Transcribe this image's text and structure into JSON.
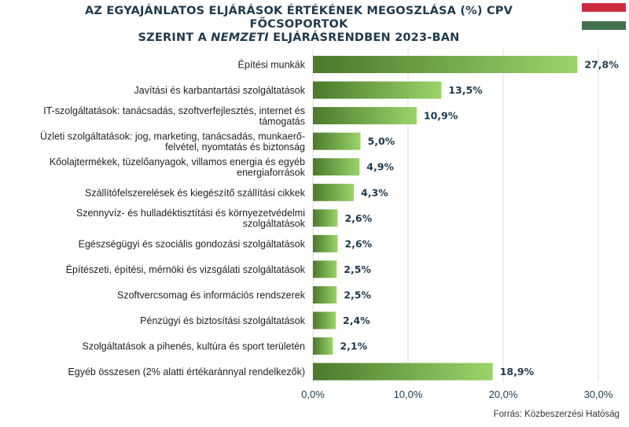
{
  "header": {
    "title_line1": "AZ EGYAJÁNLATOS ELJÁRÁSOK ÉRTÉKÉNEK MEGOSZLÁSA (%) CPV FŐCSOPORTOK",
    "title_line2_pre": "SZERINT A ",
    "title_line2_em": "NEMZETI",
    "title_line2_post": " ELJÁRÁSRENDBEN 2023-BAN"
  },
  "flag_colors": [
    "#cd2a3e",
    "#ffffff",
    "#436f4d"
  ],
  "source": "Forrás: Közbeszerzési Hatóság",
  "colors": {
    "bar_dark": "#4a7a2b",
    "bar_light": "#9bd46a",
    "grid": "#dcdcdc",
    "label": "#222222",
    "value": "#1f3a4d"
  },
  "chart_data": {
    "type": "bar",
    "orientation": "horizontal",
    "categories": [
      [
        "Építési munkák"
      ],
      [
        "Javítási és karbantartási szolgáltatások"
      ],
      [
        "IT-szolgáltatások: tanácsadás, szoftverfejlesztés, internet és",
        "támogatás"
      ],
      [
        "Üzleti szolgáltatások: jog, marketing, tanácsadás, munkaerő-",
        "felvétel, nyomtatás és biztonság"
      ],
      [
        "Kőolajtermékek, tüzelőanyagok, villamos energia és egyéb",
        "energiaforrások"
      ],
      [
        "Szállítófelszerelések és kiegészítő szállítási cikkek"
      ],
      [
        "Szennyvíz- és hulladéktisztítási és környezetvédelmi",
        "szolgáltatások"
      ],
      [
        "Egészségügyi és szociális gondozási szolgáltatások"
      ],
      [
        "Építészeti, építési, mérnöki és vizsgálati szolgáltatások"
      ],
      [
        "Szoftvercsomag és információs rendszerek"
      ],
      [
        "Pénzügyi és biztosítási szolgáltatások"
      ],
      [
        "Szolgáltatások a pihenés, kultúra és sport területén"
      ],
      [
        "Egyéb összesen (2% alatti értékaránnyal rendelkezők)"
      ]
    ],
    "values": [
      27.8,
      13.5,
      10.9,
      5.0,
      4.9,
      4.3,
      2.6,
      2.6,
      2.5,
      2.5,
      2.4,
      2.1,
      18.9
    ],
    "value_labels": [
      "27,8%",
      "13,5%",
      "10,9%",
      "5,0%",
      "4,9%",
      "4,3%",
      "2,6%",
      "2,6%",
      "2,5%",
      "2,5%",
      "2,4%",
      "2,1%",
      "18,9%"
    ],
    "xlim": [
      0,
      30
    ],
    "xticks": [
      0,
      10,
      20,
      30
    ],
    "xtick_labels": [
      "0,0%",
      "10,0%",
      "20,0%",
      "30,0%"
    ],
    "grid": true
  }
}
